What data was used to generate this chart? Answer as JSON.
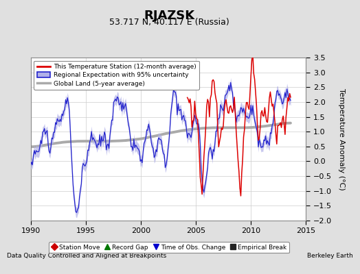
{
  "title": "RJAZSK",
  "subtitle": "53.717 N, 40.117 E (Russia)",
  "ylabel": "Temperature Anomaly (°C)",
  "xlabel_left": "Data Quality Controlled and Aligned at Breakpoints",
  "xlabel_right": "Berkeley Earth",
  "xlim": [
    1990,
    2015
  ],
  "ylim": [
    -2,
    3.5
  ],
  "yticks": [
    -2,
    -1.5,
    -1,
    -0.5,
    0,
    0.5,
    1,
    1.5,
    2,
    2.5,
    3,
    3.5
  ],
  "xticks": [
    1990,
    1995,
    2000,
    2005,
    2010,
    2015
  ],
  "bg_color": "#e0e0e0",
  "plot_bg_color": "#ffffff",
  "grid_color": "#cccccc",
  "red_color": "#dd0000",
  "blue_color": "#2222cc",
  "blue_fill_color": "#b0b0e8",
  "gray_color": "#aaaaaa",
  "legend_items": [
    "This Temperature Station (12-month average)",
    "Regional Expectation with 95% uncertainty",
    "Global Land (5-year average)"
  ],
  "bottom_legend": [
    {
      "marker": "D",
      "color": "#cc0000",
      "label": "Station Move"
    },
    {
      "marker": "^",
      "color": "#007700",
      "label": "Record Gap"
    },
    {
      "marker": "v",
      "color": "#0000cc",
      "label": "Time of Obs. Change"
    },
    {
      "marker": "s",
      "color": "#222222",
      "label": "Empirical Break"
    }
  ]
}
